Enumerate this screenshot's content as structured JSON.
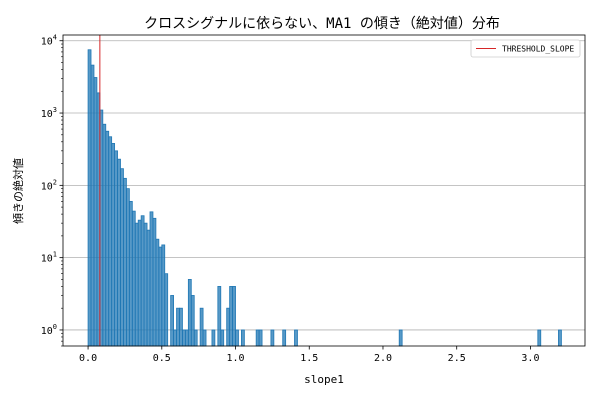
{
  "chart_data": {
    "type": "bar",
    "title": "クロスシグナルに依らない、MA1 の傾き（絶対値）分布",
    "xlabel": "slope1",
    "ylabel": "傾きの絶対値",
    "yscale": "log",
    "xlim": [
      -0.17,
      3.37
    ],
    "ylim": [
      0.6,
      12000
    ],
    "xticks": [
      0.0,
      0.5,
      1.0,
      1.5,
      2.0,
      2.5,
      3.0
    ],
    "xtick_labels": [
      "0.0",
      "0.5",
      "1.0",
      "1.5",
      "2.0",
      "2.5",
      "3.0"
    ],
    "yticks": [
      {
        "value": 1,
        "base": "10",
        "exp": "0"
      },
      {
        "value": 10,
        "base": "10",
        "exp": "1"
      },
      {
        "value": 100,
        "base": "10",
        "exp": "2"
      },
      {
        "value": 1000,
        "base": "10",
        "exp": "3"
      },
      {
        "value": 10000,
        "base": "10",
        "exp": "4"
      }
    ],
    "grid": "y",
    "bar_color": "#1f77b4",
    "threshold": {
      "name": "THRESHOLD_SLOPE",
      "x": 0.08,
      "color": "#d62728"
    },
    "legend": {
      "position": "top-right",
      "entries": [
        "THRESHOLD_SLOPE"
      ]
    },
    "bins": {
      "start": 0.0,
      "width": 0.02,
      "counts": [
        7500,
        4600,
        3100,
        1900,
        1100,
        700,
        560,
        470,
        380,
        300,
        230,
        170,
        125,
        90,
        60,
        44,
        30,
        33,
        38,
        30,
        24,
        43,
        35,
        18,
        14,
        15,
        6,
        0,
        3,
        1,
        2,
        2,
        1,
        1,
        5,
        3,
        1,
        0,
        2,
        1,
        0,
        0,
        1,
        0,
        4,
        1,
        0,
        2,
        4,
        4,
        1,
        0,
        1,
        0,
        0,
        0,
        0,
        1,
        1,
        0,
        0,
        0,
        1,
        0,
        0,
        0,
        1,
        0,
        0,
        0,
        1
      ]
    },
    "outliers": [
      {
        "x": 2.12,
        "count": 1
      },
      {
        "x": 3.06,
        "count": 1
      },
      {
        "x": 3.2,
        "count": 1
      }
    ]
  }
}
